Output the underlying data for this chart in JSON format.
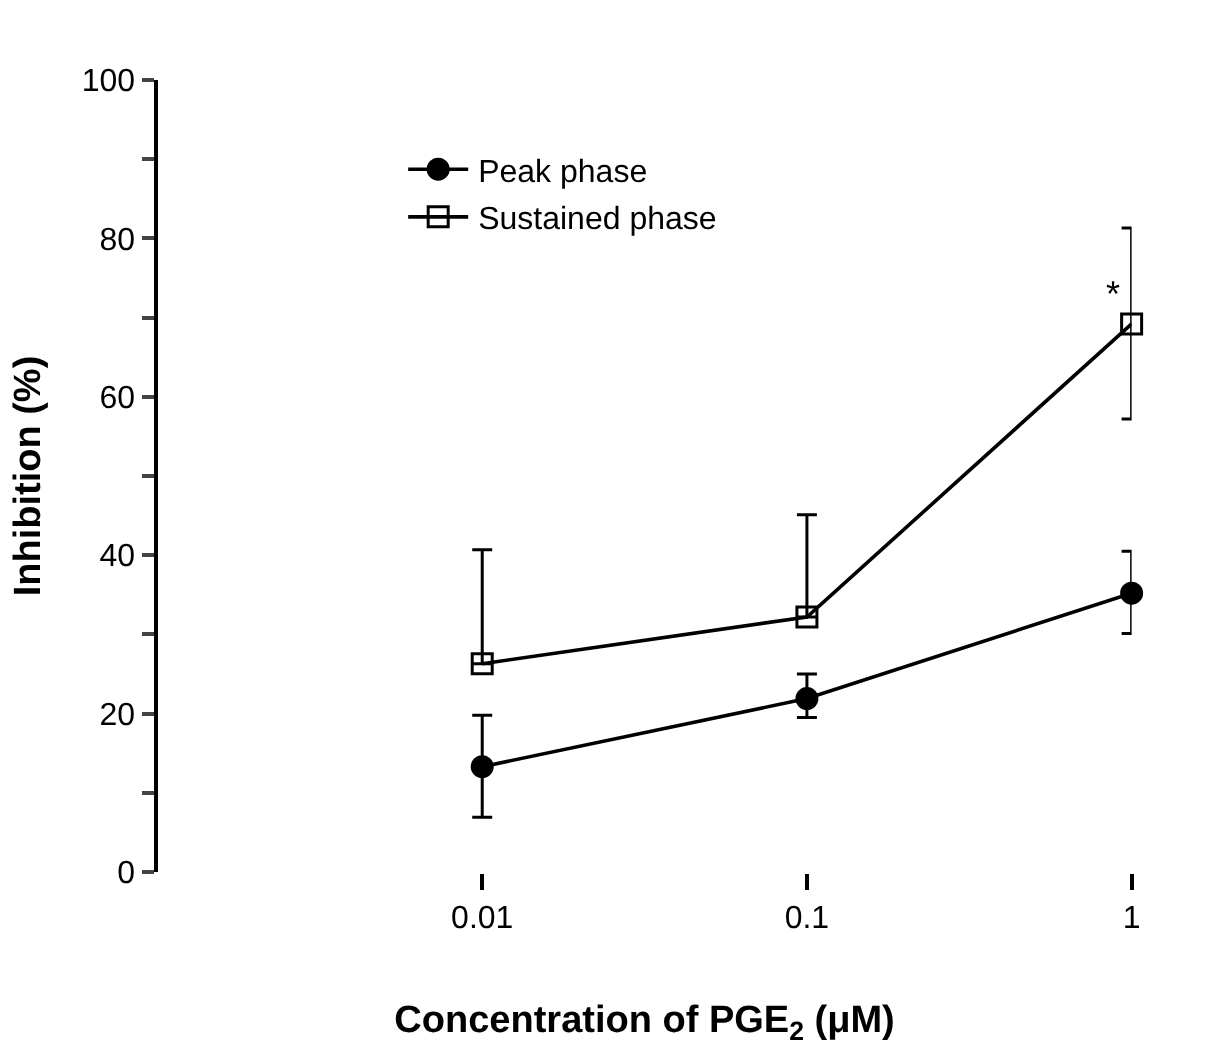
{
  "chart_data": {
    "type": "line",
    "xlabel": "Concentration of PGE$_{2}$ (μM)",
    "ylabel": "Inhibition (%)",
    "x": [
      0.01,
      0.1,
      1
    ],
    "log": "x",
    "xlim": [
      0.001,
      1
    ],
    "xticks": [
      0.01,
      0.1,
      1
    ],
    "ylim": [
      0,
      100
    ],
    "yticks": [
      0,
      {
        "value": 10,
        "label": null
      },
      20,
      {
        "value": 30,
        "label": null
      },
      40,
      {
        "value": 50,
        "label": null
      },
      60,
      {
        "value": 70,
        "label": null
      },
      80,
      {
        "value": 90,
        "label": null
      },
      100
    ],
    "legend": "top left",
    "line_style": "solid",
    "series": [
      {
        "name": "Peak phase",
        "color": "#000000",
        "marker": "circle",
        "values": [
          13.3,
          21.9,
          35.2
        ],
        "errors": [
          [
            6.9,
            19.8
          ],
          [
            19.5,
            25.0
          ],
          [
            30.1,
            40.5
          ]
        ]
      },
      {
        "name": "Sustained phase",
        "color": "#000000",
        "marker": "square",
        "values": [
          26.3,
          32.2,
          69.2
        ],
        "errors": [
          [
            26.3,
            40.7
          ],
          [
            32.2,
            45.1
          ],
          [
            57.2,
            81.3
          ]
        ]
      }
    ],
    "annotations": [
      {
        "text": "*",
        "x": 1,
        "y": 73
      }
    ]
  }
}
